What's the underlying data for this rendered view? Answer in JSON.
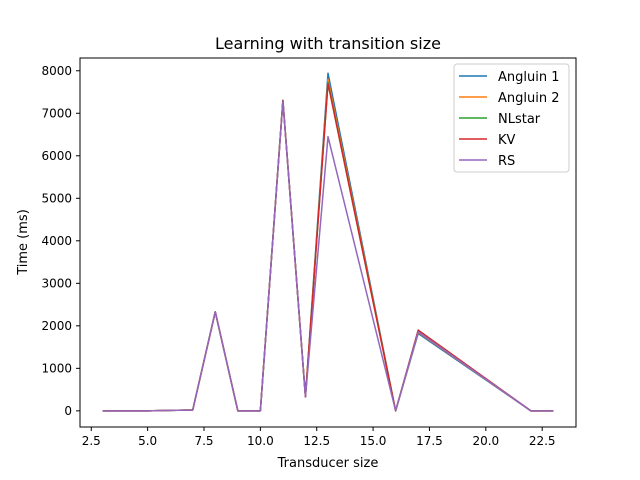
{
  "chart_data": {
    "type": "line",
    "title": "Learning with transition size",
    "xlabel": "Transducer size",
    "ylabel": "Time (ms)",
    "xlim": [
      2.0,
      24.0
    ],
    "ylim": [
      -380,
      8300
    ],
    "xticks": [
      2.5,
      5.0,
      7.5,
      10.0,
      12.5,
      15.0,
      17.5,
      20.0,
      22.5
    ],
    "xtick_labels": [
      "2.5",
      "5.0",
      "7.5",
      "10.0",
      "12.5",
      "15.0",
      "17.5",
      "20.0",
      "22.5"
    ],
    "yticks": [
      0,
      1000,
      2000,
      3000,
      4000,
      5000,
      6000,
      7000,
      8000
    ],
    "ytick_labels": [
      "0",
      "1000",
      "2000",
      "3000",
      "4000",
      "5000",
      "6000",
      "7000",
      "8000"
    ],
    "grid": false,
    "legend_position": "top-right",
    "x": [
      3,
      5,
      6,
      7,
      8,
      9,
      10,
      11,
      12,
      13,
      16,
      17,
      22,
      23
    ],
    "series": [
      {
        "name": "Angluin 1",
        "color": "#1f77b4",
        "values": [
          0,
          0,
          10,
          20,
          2330,
          0,
          0,
          7300,
          330,
          7940,
          0,
          1820,
          0,
          0
        ]
      },
      {
        "name": "Angluin 2",
        "color": "#ff7f0e",
        "values": [
          0,
          0,
          10,
          20,
          2330,
          0,
          0,
          7300,
          330,
          7800,
          0,
          1850,
          0,
          0
        ]
      },
      {
        "name": "NLstar",
        "color": "#2ca02c",
        "values": [
          0,
          0,
          10,
          20,
          2330,
          0,
          0,
          7300,
          330,
          7720,
          0,
          1880,
          0,
          0
        ]
      },
      {
        "name": "KV",
        "color": "#d62728",
        "values": [
          0,
          0,
          10,
          20,
          2330,
          0,
          0,
          7300,
          330,
          7700,
          0,
          1900,
          0,
          0
        ]
      },
      {
        "name": "RS",
        "color": "#9467bd",
        "values": [
          0,
          0,
          10,
          20,
          2330,
          0,
          0,
          7280,
          330,
          6450,
          0,
          1860,
          0,
          0
        ]
      }
    ]
  }
}
